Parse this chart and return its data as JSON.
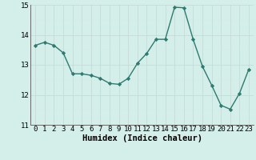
{
  "xlabel": "Humidex (Indice chaleur)",
  "x": [
    0,
    1,
    2,
    3,
    4,
    5,
    6,
    7,
    8,
    9,
    10,
    11,
    12,
    13,
    14,
    15,
    16,
    17,
    18,
    19,
    20,
    21,
    22,
    23
  ],
  "y": [
    13.65,
    13.75,
    13.65,
    13.4,
    12.7,
    12.7,
    12.65,
    12.55,
    12.38,
    12.35,
    12.55,
    13.05,
    13.38,
    13.85,
    13.85,
    14.92,
    14.9,
    13.85,
    12.95,
    12.32,
    11.65,
    11.52,
    12.05,
    12.85
  ],
  "line_color": "#2d7b70",
  "marker": "D",
  "marker_size": 2.2,
  "line_width": 1.0,
  "bg_color": "#d4eeea",
  "grid_color_major": "#c4d8d4",
  "grid_color_minor": "#daeae7",
  "ylim": [
    11,
    15
  ],
  "yticks": [
    11,
    12,
    13,
    14,
    15
  ],
  "xlim": [
    -0.5,
    23.5
  ],
  "xticks": [
    0,
    1,
    2,
    3,
    4,
    5,
    6,
    7,
    8,
    9,
    10,
    11,
    12,
    13,
    14,
    15,
    16,
    17,
    18,
    19,
    20,
    21,
    22,
    23
  ],
  "xlabel_fontsize": 7.5,
  "tick_fontsize": 6.5,
  "spine_color": "#666666"
}
